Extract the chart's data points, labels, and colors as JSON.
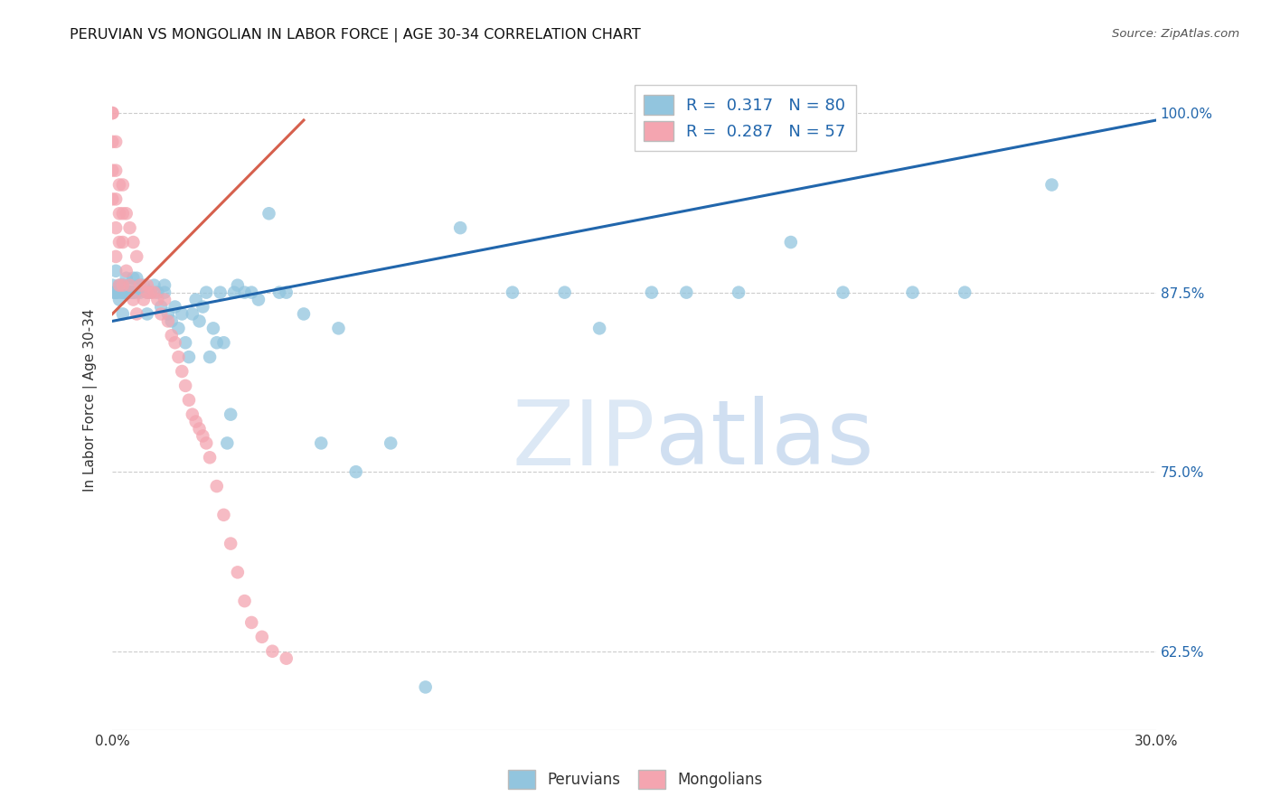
{
  "title": "PERUVIAN VS MONGOLIAN IN LABOR FORCE | AGE 30-34 CORRELATION CHART",
  "source": "Source: ZipAtlas.com",
  "ylabel": "In Labor Force | Age 30-34",
  "xlim": [
    0.0,
    0.3
  ],
  "ylim": [
    0.57,
    1.03
  ],
  "xticks": [
    0.0,
    0.05,
    0.1,
    0.15,
    0.2,
    0.25,
    0.3
  ],
  "xticklabels": [
    "0.0%",
    "",
    "",
    "",
    "",
    "",
    "30.0%"
  ],
  "yticks": [
    0.625,
    0.75,
    0.875,
    1.0
  ],
  "yticklabels": [
    "62.5%",
    "75.0%",
    "87.5%",
    "100.0%"
  ],
  "blue_color": "#92c5de",
  "pink_color": "#f4a5b0",
  "blue_line_color": "#2166ac",
  "pink_line_color": "#d6604d",
  "blue_R": 0.317,
  "blue_N": 80,
  "pink_R": 0.287,
  "pink_N": 57,
  "blue_line_x0": 0.0,
  "blue_line_y0": 0.855,
  "blue_line_x1": 0.3,
  "blue_line_y1": 0.995,
  "pink_line_x0": 0.0,
  "pink_line_y0": 0.86,
  "pink_line_x1": 0.055,
  "pink_line_y1": 0.995,
  "peruvians_x": [
    0.001,
    0.001,
    0.002,
    0.002,
    0.003,
    0.003,
    0.003,
    0.004,
    0.004,
    0.005,
    0.005,
    0.006,
    0.006,
    0.007,
    0.007,
    0.008,
    0.009,
    0.01,
    0.01,
    0.011,
    0.012,
    0.013,
    0.014,
    0.015,
    0.015,
    0.016,
    0.017,
    0.018,
    0.019,
    0.02,
    0.021,
    0.022,
    0.023,
    0.024,
    0.025,
    0.026,
    0.027,
    0.028,
    0.029,
    0.03,
    0.031,
    0.032,
    0.033,
    0.034,
    0.035,
    0.036,
    0.038,
    0.04,
    0.042,
    0.045,
    0.048,
    0.05,
    0.055,
    0.06,
    0.065,
    0.07,
    0.08,
    0.09,
    0.1,
    0.115,
    0.13,
    0.14,
    0.155,
    0.165,
    0.18,
    0.195,
    0.21,
    0.23,
    0.245,
    0.27,
    0.0,
    0.0,
    0.001,
    0.001,
    0.002,
    0.003,
    0.004,
    0.005,
    0.006,
    0.008
  ],
  "peruvians_y": [
    0.875,
    0.89,
    0.87,
    0.88,
    0.86,
    0.875,
    0.88,
    0.875,
    0.885,
    0.875,
    0.88,
    0.875,
    0.885,
    0.875,
    0.885,
    0.88,
    0.88,
    0.86,
    0.875,
    0.875,
    0.88,
    0.875,
    0.865,
    0.875,
    0.88,
    0.86,
    0.855,
    0.865,
    0.85,
    0.86,
    0.84,
    0.83,
    0.86,
    0.87,
    0.855,
    0.865,
    0.875,
    0.83,
    0.85,
    0.84,
    0.875,
    0.84,
    0.77,
    0.79,
    0.875,
    0.88,
    0.875,
    0.875,
    0.87,
    0.93,
    0.875,
    0.875,
    0.86,
    0.77,
    0.85,
    0.75,
    0.77,
    0.6,
    0.92,
    0.875,
    0.875,
    0.85,
    0.875,
    0.875,
    0.875,
    0.91,
    0.875,
    0.875,
    0.875,
    0.95,
    0.88,
    0.875,
    0.875,
    0.875,
    0.875,
    0.875,
    0.875,
    0.875,
    0.875,
    0.875
  ],
  "mongolians_x": [
    0.0,
    0.0,
    0.0,
    0.0,
    0.0,
    0.001,
    0.001,
    0.001,
    0.001,
    0.001,
    0.002,
    0.002,
    0.002,
    0.002,
    0.003,
    0.003,
    0.003,
    0.003,
    0.004,
    0.004,
    0.005,
    0.005,
    0.006,
    0.006,
    0.007,
    0.007,
    0.008,
    0.009,
    0.01,
    0.01,
    0.011,
    0.012,
    0.013,
    0.014,
    0.015,
    0.016,
    0.017,
    0.018,
    0.019,
    0.02,
    0.021,
    0.022,
    0.023,
    0.024,
    0.025,
    0.026,
    0.027,
    0.028,
    0.03,
    0.032,
    0.034,
    0.036,
    0.038,
    0.04,
    0.043,
    0.046,
    0.05
  ],
  "mongolians_y": [
    1.0,
    1.0,
    0.98,
    0.96,
    0.94,
    0.98,
    0.96,
    0.94,
    0.92,
    0.9,
    0.95,
    0.93,
    0.91,
    0.88,
    0.95,
    0.93,
    0.91,
    0.88,
    0.93,
    0.89,
    0.92,
    0.88,
    0.91,
    0.87,
    0.9,
    0.86,
    0.88,
    0.87,
    0.88,
    0.875,
    0.875,
    0.875,
    0.87,
    0.86,
    0.87,
    0.855,
    0.845,
    0.84,
    0.83,
    0.82,
    0.81,
    0.8,
    0.79,
    0.785,
    0.78,
    0.775,
    0.77,
    0.76,
    0.74,
    0.72,
    0.7,
    0.68,
    0.66,
    0.645,
    0.635,
    0.625,
    0.62
  ]
}
